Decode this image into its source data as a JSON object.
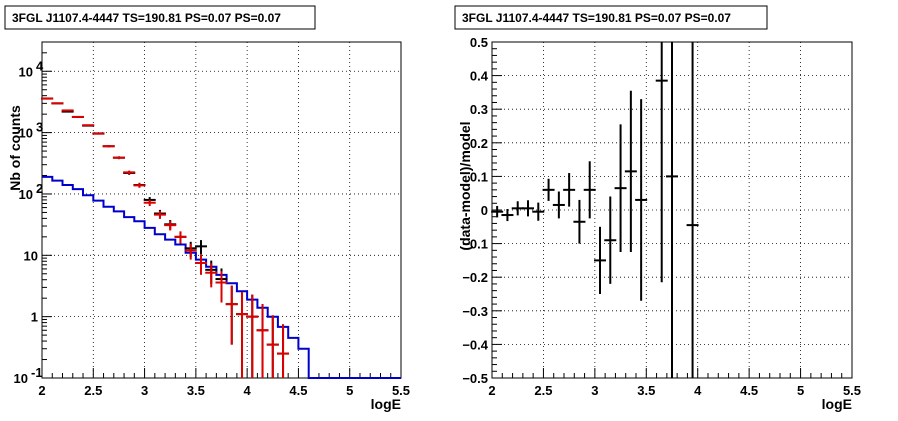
{
  "chart_data": [
    {
      "type": "line",
      "title": "3FGL J1107.4-4447 TS=190.81 PS=0.07 PS=0.07",
      "xlabel": "logE",
      "ylabel": "Nb of counts",
      "xlim": [
        2,
        5.5
      ],
      "ylim": [
        0.1,
        30000
      ],
      "yscale": "log",
      "grid": true,
      "x_ticks": [
        "2",
        "2.5",
        "3",
        "3.5",
        "4",
        "4.5",
        "5",
        "5.5"
      ],
      "y_ticks": [
        {
          "value": 0.1,
          "label": "10",
          "exp": "-1"
        },
        {
          "value": 1,
          "label": "1",
          "exp": ""
        },
        {
          "value": 10,
          "label": "10",
          "exp": ""
        },
        {
          "value": 100,
          "label": "10",
          "exp": "2"
        },
        {
          "value": 1000,
          "label": "10",
          "exp": "3"
        },
        {
          "value": 10000,
          "label": "10",
          "exp": "4"
        }
      ],
      "series": [
        {
          "style": "step",
          "color": "#0000cc",
          "x": [
            2.0,
            2.1,
            2.2,
            2.3,
            2.4,
            2.5,
            2.6,
            2.7,
            2.8,
            2.9,
            3.0,
            3.1,
            3.2,
            3.3,
            3.4,
            3.5,
            3.6,
            3.7,
            3.8,
            3.9,
            4.0,
            4.1,
            4.2,
            4.3,
            4.4,
            4.5,
            4.6,
            4.7,
            4.8,
            4.9,
            5.0,
            5.1,
            5.2,
            5.3,
            5.4
          ],
          "values": [
            190,
            165,
            140,
            120,
            95,
            78,
            62,
            52,
            42,
            36,
            28,
            22,
            18,
            15,
            11,
            8.5,
            6.5,
            4.8,
            3.5,
            2.6,
            1.9,
            1.4,
            1.0,
            0.68,
            0.45,
            0.3,
            0.1,
            0.1,
            0.1,
            0.1,
            0.1,
            0.1,
            0.1,
            0.1,
            0.1
          ]
        },
        {
          "style": "errorbar",
          "color": "#000000",
          "x": [
            2.05,
            2.15,
            2.25,
            2.35,
            2.45,
            2.55,
            2.65,
            2.75,
            2.85,
            2.95,
            3.05,
            3.15,
            3.25,
            3.35,
            3.45,
            3.55,
            3.65,
            3.75,
            3.85,
            3.95,
            4.05,
            4.15,
            4.25,
            4.35
          ],
          "values": [
            3600,
            3000,
            2200,
            1800,
            1300,
            970,
            600,
            390,
            220,
            140,
            80,
            48,
            32,
            20,
            13,
            14,
            5.8,
            4.1,
            1.6,
            1.1,
            1.0,
            0.6,
            0.35,
            0.25
          ],
          "err_low": [
            60,
            55,
            47,
            42,
            36,
            31,
            24,
            20,
            15,
            12,
            9,
            7,
            5.6,
            4.5,
            3.6,
            3.7,
            2.4,
            2.0,
            1.25,
            1.0,
            0.95,
            0.55,
            0.33,
            0.22
          ],
          "err_high": [
            60,
            55,
            47,
            42,
            36,
            31,
            24,
            20,
            15,
            12,
            9,
            7,
            5.6,
            4.5,
            3.6,
            3.7,
            2.4,
            2.0,
            1.6,
            1.4,
            1.3,
            1.0,
            0.7,
            0.5
          ]
        },
        {
          "style": "errorbar",
          "color": "#dd0000",
          "x": [
            2.05,
            2.15,
            2.25,
            2.35,
            2.45,
            2.55,
            2.65,
            2.75,
            2.85,
            2.95,
            3.05,
            3.15,
            3.25,
            3.35,
            3.45,
            3.55,
            3.65,
            3.75,
            3.85,
            3.95,
            4.05,
            4.15,
            4.25,
            4.35
          ],
          "values": [
            3580,
            3000,
            2300,
            1800,
            1320,
            960,
            600,
            390,
            225,
            138,
            72,
            46,
            31,
            20,
            12,
            7.5,
            5.2,
            3.6,
            1.6,
            1.1,
            1.0,
            0.6,
            0.35,
            0.25
          ],
          "err_low": [
            60,
            55,
            48,
            42,
            36,
            31,
            24,
            20,
            15,
            12,
            8.5,
            6.8,
            5.6,
            4.5,
            3.5,
            2.7,
            2.2,
            1.9,
            1.25,
            1.0,
            0.95,
            0.55,
            0.33,
            0.22
          ],
          "err_high": [
            60,
            55,
            48,
            42,
            36,
            31,
            24,
            20,
            15,
            12,
            8.5,
            6.8,
            5.6,
            4.5,
            3.5,
            2.7,
            2.2,
            1.9,
            1.6,
            1.4,
            1.3,
            1.0,
            0.7,
            0.5
          ]
        }
      ]
    },
    {
      "type": "scatter",
      "title": "3FGL J1107.4-4447 TS=190.81 PS=0.07 PS=0.07",
      "xlabel": "logE",
      "ylabel": "(data-model)/model",
      "xlim": [
        2,
        5.5
      ],
      "ylim": [
        -0.5,
        0.5
      ],
      "grid": true,
      "x_ticks": [
        "2",
        "2.5",
        "3",
        "3.5",
        "4",
        "4.5",
        "5",
        "5.5"
      ],
      "y_ticks": [
        "−0.5",
        "−0.4",
        "−0.3",
        "−0.2",
        "−0.1",
        "0",
        "0.1",
        "0.2",
        "0.3",
        "0.4",
        "0.5"
      ],
      "series": [
        {
          "style": "errorbar",
          "color": "#000000",
          "x": [
            2.05,
            2.15,
            2.25,
            2.35,
            2.45,
            2.55,
            2.65,
            2.75,
            2.85,
            2.95,
            3.05,
            3.15,
            3.25,
            3.35,
            3.45,
            3.65,
            3.75,
            3.95
          ],
          "values": [
            -0.005,
            -0.015,
            0.005,
            0.005,
            -0.005,
            0.06,
            0.015,
            0.06,
            -0.035,
            0.06,
            -0.15,
            -0.09,
            0.065,
            0.115,
            0.03,
            0.385,
            0.1,
            -0.045
          ],
          "err": [
            0.017,
            0.018,
            0.021,
            0.024,
            0.027,
            0.033,
            0.04,
            0.05,
            0.065,
            0.085,
            0.1,
            0.13,
            0.19,
            0.24,
            0.3,
            0.6,
            0.8,
            0.9
          ]
        }
      ]
    }
  ]
}
